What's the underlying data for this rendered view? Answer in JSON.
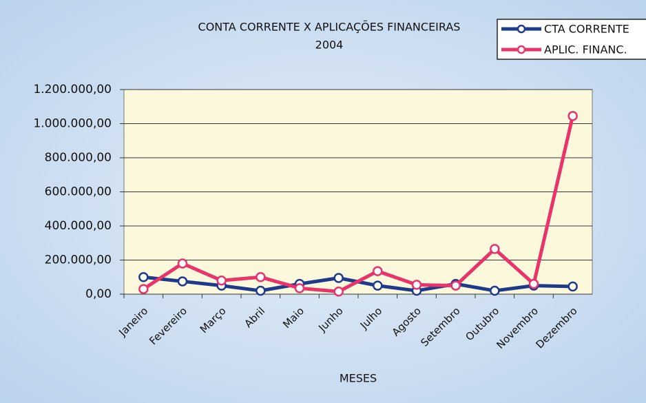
{
  "chart_data": {
    "type": "line",
    "title": "CONTA CORRENTE X APLICAÇÕES FINANCEIRAS",
    "subtitle": "2004",
    "x_label": "MESES",
    "categories": [
      "Janeiro",
      "Fevereiro",
      "Março",
      "Abril",
      "Maio",
      "Junho",
      "Julho",
      "Agosto",
      "Setembro",
      "Outubro",
      "Novembro",
      "Dezembro"
    ],
    "series": [
      {
        "name": "CTA CORRENTE",
        "color": "#1f3a8a",
        "values": [
          100000,
          75000,
          50000,
          20000,
          60000,
          95000,
          50000,
          20000,
          60000,
          20000,
          50000,
          45000
        ]
      },
      {
        "name": "APLIC. FINANC.",
        "color": "#e8336b",
        "values": [
          30000,
          180000,
          80000,
          100000,
          35000,
          15000,
          135000,
          55000,
          50000,
          265000,
          60000,
          1045000
        ]
      }
    ],
    "ylim": [
      0,
      1200000
    ],
    "yticks": [
      {
        "value": 0,
        "label": "0,00"
      },
      {
        "value": 200000,
        "label": "200.000,00"
      },
      {
        "value": 400000,
        "label": "400.000,00"
      },
      {
        "value": 600000,
        "label": "600.000,00"
      },
      {
        "value": 800000,
        "label": "800.000,00"
      },
      {
        "value": 1000000,
        "label": "1.000.000,00"
      },
      {
        "value": 1200000,
        "label": "1.200.000,00"
      }
    ],
    "grid": true,
    "legend": "top-right"
  }
}
